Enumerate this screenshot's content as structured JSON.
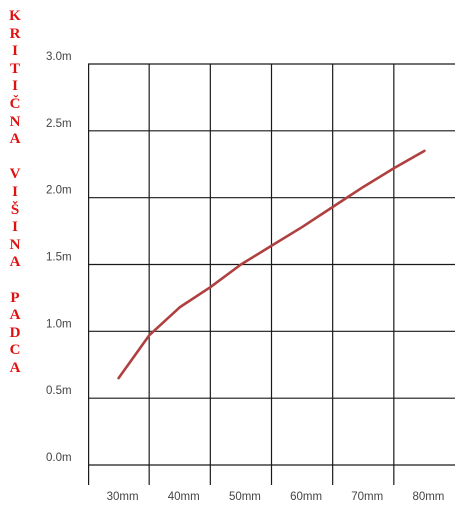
{
  "chart_data": {
    "type": "line",
    "ylabel": "KRITIČNA VIŠINA PADCA",
    "xlabel": "",
    "title": "",
    "categories": [
      "30mm",
      "40mm",
      "50mm",
      "60mm",
      "70mm",
      "80mm"
    ],
    "y_tick_labels": [
      "0.0m",
      "0.5m",
      "1.0m",
      "1.5m",
      "2.0m",
      "2.5m",
      "3.0m"
    ],
    "ylim": [
      0,
      3.0
    ],
    "xlim": [
      25,
      85
    ],
    "grid": true,
    "legend": "none",
    "series": [
      {
        "color": "#b04040",
        "x": [
          30,
          35,
          40,
          45,
          50,
          55,
          60,
          65,
          70,
          75,
          80
        ],
        "y": [
          0.65,
          0.97,
          1.18,
          1.33,
          1.5,
          1.64,
          1.78,
          1.93,
          2.08,
          2.22,
          2.35
        ]
      }
    ]
  }
}
